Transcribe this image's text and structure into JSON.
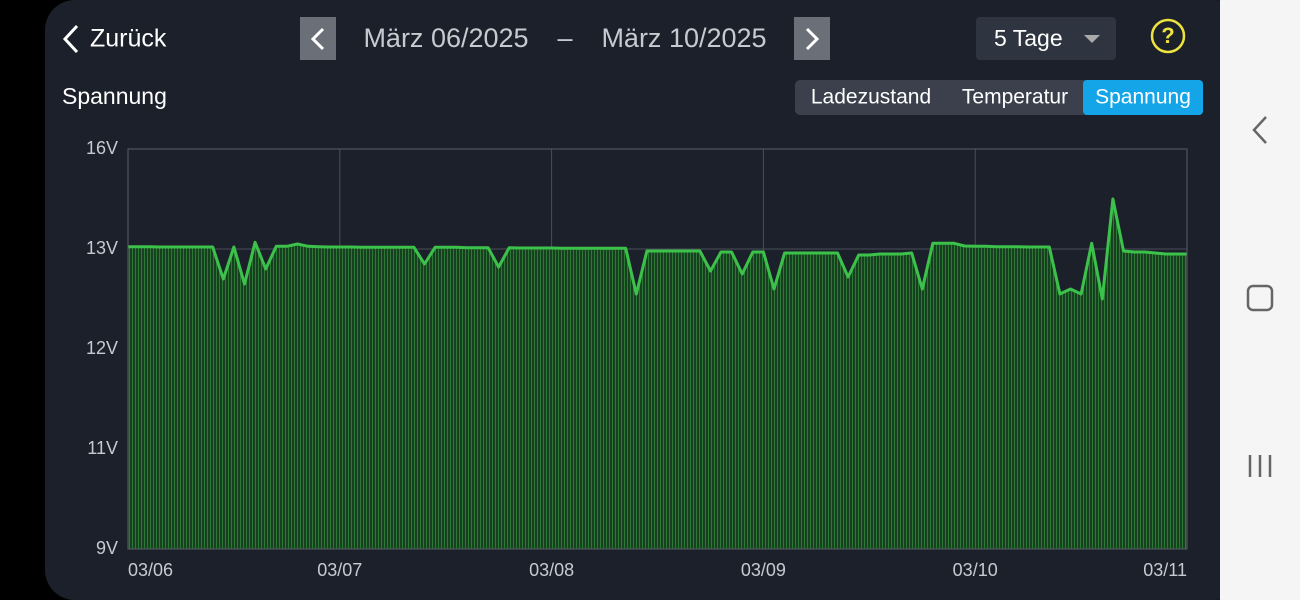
{
  "header": {
    "back": "Zurück",
    "date_from": "März 06/2025",
    "date_separator": "–",
    "date_to": "März 10/2025",
    "range": "5 Tage",
    "help": "?"
  },
  "tabs": [
    "Ladezustand",
    "Temperatur",
    "Spannung"
  ],
  "active_tab": 2,
  "chart_data": {
    "type": "area",
    "title": "Spannung",
    "xticks": [
      "03/06",
      "03/07",
      "03/08",
      "03/09",
      "03/10",
      "03/11"
    ],
    "ylim": [
      9,
      16
    ],
    "yticks": [
      {
        "value": 9,
        "label": "9V"
      },
      {
        "value": 11,
        "label": "11V"
      },
      {
        "value": 12,
        "label": "12V"
      },
      {
        "value": 13,
        "label": "13V"
      },
      {
        "value": 16,
        "label": "16V"
      }
    ],
    "grid": true,
    "color": "#3cc24a",
    "fill_color": "#1d5a29",
    "values": [
      13.07,
      13.07,
      13.07,
      13.06,
      13.06,
      13.06,
      13.06,
      13.06,
      13.06,
      12.7,
      13.06,
      12.65,
      13.2,
      12.8,
      13.08,
      13.08,
      13.15,
      13.08,
      13.07,
      13.06,
      13.06,
      13.06,
      13.05,
      13.05,
      13.05,
      13.05,
      13.05,
      13.05,
      12.85,
      13.05,
      13.05,
      13.05,
      13.04,
      13.04,
      13.04,
      12.82,
      13.04,
      13.03,
      13.03,
      13.03,
      13.03,
      13.02,
      13.02,
      13.02,
      13.02,
      13.02,
      13.02,
      13.02,
      12.55,
      12.98,
      12.98,
      12.98,
      12.98,
      12.98,
      12.98,
      12.78,
      12.97,
      12.97,
      12.75,
      12.97,
      12.97,
      12.6,
      12.96,
      12.96,
      12.96,
      12.96,
      12.96,
      12.96,
      12.72,
      12.94,
      12.94,
      12.95,
      12.95,
      12.95,
      12.96,
      12.6,
      13.17,
      13.17,
      13.17,
      13.09,
      13.08,
      13.08,
      13.07,
      13.07,
      13.07,
      13.06,
      13.06,
      13.06,
      12.55,
      12.6,
      12.55,
      13.17,
      12.5,
      14.5,
      12.98,
      12.97,
      12.97,
      12.96,
      12.95,
      12.95,
      12.95
    ]
  }
}
